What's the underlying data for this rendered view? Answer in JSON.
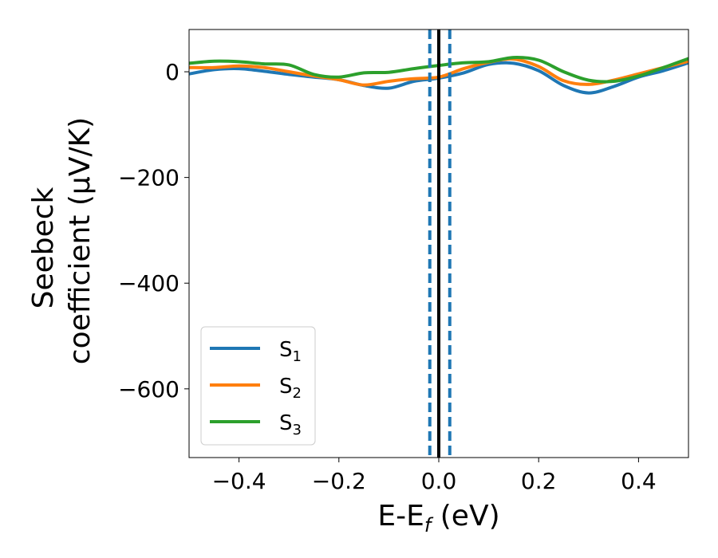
{
  "chart_data": {
    "type": "line",
    "xlabel": {
      "main": "E-E",
      "sub": "f",
      "unit": " (eV)"
    },
    "ylabel": {
      "line1": "Seebeck",
      "line2": "coefficient  (μV/K)"
    },
    "xlim": [
      -0.5,
      0.5
    ],
    "ylim": [
      -730,
      80
    ],
    "xticks": [
      -0.4,
      -0.2,
      0.0,
      0.2,
      0.4
    ],
    "xtick_labels": [
      "−0.4",
      "−0.2",
      "0.0",
      "0.2",
      "0.4"
    ],
    "yticks": [
      0,
      -200,
      -400,
      -600
    ],
    "ytick_labels": [
      "0",
      "−200",
      "−400",
      "−600"
    ],
    "grid": false,
    "legend_position": "lower-left",
    "vertical_lines": [
      {
        "x": -0.018,
        "style": "dashed",
        "color": "#1f77b4"
      },
      {
        "x": 0.0,
        "style": "solid",
        "color": "#000000"
      },
      {
        "x": 0.022,
        "style": "dashed",
        "color": "#1f77b4"
      }
    ],
    "series": [
      {
        "name": "S",
        "sub": "1",
        "color": "#1f77b4",
        "x": [
          -0.5,
          -0.45,
          -0.4,
          -0.35,
          -0.3,
          -0.25,
          -0.2,
          -0.15,
          -0.1,
          -0.05,
          0.0,
          0.05,
          0.1,
          0.15,
          0.2,
          0.25,
          0.3,
          0.35,
          0.4,
          0.45,
          0.5
        ],
        "y": [
          -4,
          4,
          6,
          1,
          -5,
          -10,
          -15,
          -26,
          -31,
          -18,
          -12,
          -2,
          14,
          16,
          2,
          -26,
          -40,
          -28,
          -10,
          2,
          17
        ]
      },
      {
        "name": "S",
        "sub": "2",
        "color": "#ff7f0e",
        "x": [
          -0.5,
          -0.45,
          -0.4,
          -0.35,
          -0.3,
          -0.25,
          -0.2,
          -0.15,
          -0.1,
          -0.05,
          0.0,
          0.05,
          0.1,
          0.15,
          0.2,
          0.25,
          0.3,
          0.35,
          0.4,
          0.45,
          0.5
        ],
        "y": [
          8,
          8,
          11,
          8,
          0,
          -8,
          -15,
          -25,
          -18,
          -13,
          -10,
          6,
          18,
          24,
          10,
          -17,
          -24,
          -16,
          -4,
          8,
          20
        ]
      },
      {
        "name": "S",
        "sub": "3",
        "color": "#2ca02c",
        "x": [
          -0.5,
          -0.45,
          -0.4,
          -0.35,
          -0.3,
          -0.25,
          -0.2,
          -0.15,
          -0.1,
          -0.05,
          0.0,
          0.05,
          0.1,
          0.15,
          0.2,
          0.25,
          0.3,
          0.35,
          0.4,
          0.45,
          0.5
        ],
        "y": [
          16,
          20,
          19,
          15,
          13,
          -5,
          -10,
          -2,
          -1,
          6,
          12,
          17,
          19,
          27,
          22,
          0,
          -16,
          -18,
          -8,
          8,
          25
        ]
      }
    ]
  }
}
